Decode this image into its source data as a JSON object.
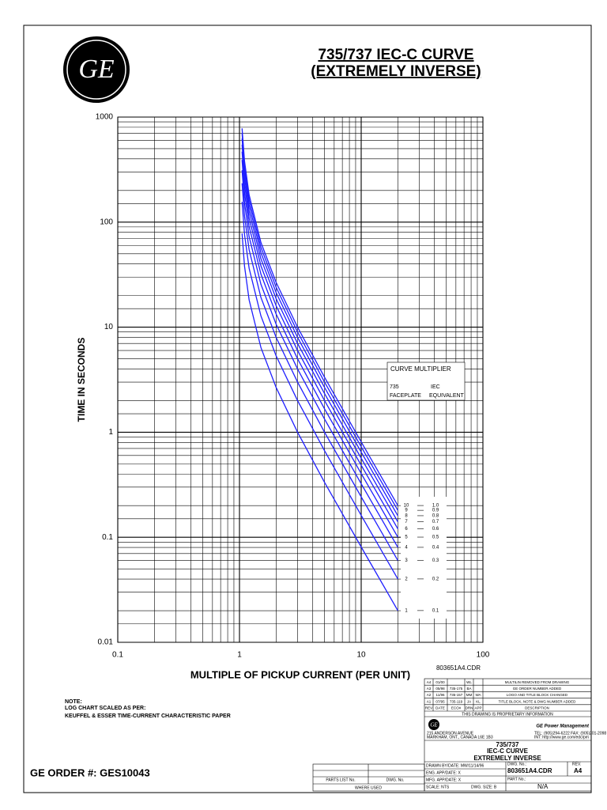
{
  "chart_data": {
    "type": "line",
    "title": "735/737 IEC-C CURVE",
    "subtitle": "(EXTREMELY INVERSE)",
    "x_label": "MULTIPLE OF PICKUP CURRENT (PER UNIT)",
    "y_label": "TIME IN SECONDS",
    "log_x": true,
    "log_y": true,
    "grid": true,
    "xlim": [
      0.1,
      100
    ],
    "ylim": [
      0.01,
      1000
    ],
    "xticks": [
      0.1,
      1,
      10,
      100
    ],
    "yticks": [
      0.01,
      0.1,
      1,
      10,
      100,
      1000
    ],
    "legend_title": "CURVE MULTIPLIER",
    "legend_col1": [
      "735",
      "FACEPLATE"
    ],
    "legend_col2": [
      "IEC",
      "EQUIVALENT"
    ],
    "x": [
      1.05,
      1.1,
      1.2,
      1.5,
      2,
      3,
      5,
      10,
      20
    ],
    "series": [
      {
        "name": "1",
        "iec": "0.1",
        "color": "#1f1fff",
        "values": [
          78.05,
          38.1,
          18.18,
          6.4,
          2.667,
          1,
          0.3333,
          0.0808,
          0.02005
        ]
      },
      {
        "name": "2",
        "iec": "0.2",
        "color": "#1f1fff",
        "values": [
          156.1,
          76.2,
          36.36,
          12.8,
          5.333,
          2,
          0.6667,
          0.1616,
          0.0401
        ]
      },
      {
        "name": "3",
        "iec": "0.3",
        "color": "#1f1fff",
        "values": [
          234.2,
          114.3,
          54.55,
          19.2,
          8,
          3,
          1,
          0.2424,
          0.06015
        ]
      },
      {
        "name": "4",
        "iec": "0.4",
        "color": "#1f1fff",
        "values": [
          312.2,
          152.4,
          72.73,
          25.6,
          10.67,
          4,
          1.333,
          0.3232,
          0.0802
        ]
      },
      {
        "name": "5",
        "iec": "0.5",
        "color": "#1f1fff",
        "values": [
          390.3,
          190.5,
          90.91,
          32,
          13.33,
          5,
          1.667,
          0.404,
          0.1003
        ]
      },
      {
        "name": "6",
        "iec": "0.6",
        "color": "#1f1fff",
        "values": [
          468.3,
          228.6,
          109.1,
          38.4,
          16,
          6,
          2,
          0.4848,
          0.1203
        ]
      },
      {
        "name": "7",
        "iec": "0.7",
        "color": "#1f1fff",
        "values": [
          546.4,
          266.7,
          127.3,
          44.8,
          18.67,
          7,
          2.333,
          0.5657,
          0.1404
        ]
      },
      {
        "name": "8",
        "iec": "0.8",
        "color": "#1f1fff",
        "values": [
          624.4,
          304.8,
          145.5,
          51.2,
          21.33,
          8,
          2.667,
          0.6465,
          0.1604
        ]
      },
      {
        "name": "9",
        "iec": "0.9",
        "color": "#1f1fff",
        "values": [
          702.5,
          342.9,
          163.6,
          57.6,
          24,
          9,
          3,
          0.7273,
          0.1805
        ]
      },
      {
        "name": "10",
        "iec": "1.0",
        "color": "#1f1fff",
        "values": [
          780.5,
          381,
          181.8,
          64,
          26.67,
          10,
          3.333,
          0.808,
          0.2005
        ]
      }
    ]
  },
  "logo": "GE",
  "file_name": "803651A4.CDR",
  "note": [
    "NOTE:",
    "LOG CHART SCALED AS PER:",
    "KEUFFEL & ESSER TIME-CURRENT CHARACTERISTIC PAPER"
  ],
  "order": "GE ORDER #: GES10043",
  "title_block": {
    "revisions": [
      [
        "A4",
        "01/00",
        null,
        "WL",
        null,
        "MULTILIN REMOVED FROM DRAWING"
      ],
      [
        "A3",
        "05/98",
        "735-175",
        "BA",
        null,
        "GE ORDER NUMBER ADDED"
      ],
      [
        "A2",
        "11/96",
        "735-157",
        "MM",
        "WA",
        "LOGO AND TITLE BLOCK CHANGED"
      ],
      [
        "A1",
        "07/95",
        "735-119",
        "JA",
        "KL",
        "TITLE BLOCK, NOTE & DWG NUMBER ADDED"
      ]
    ],
    "rev_header": [
      "REV",
      "DATE",
      "ECO#",
      "DRN",
      "APP",
      "DESCRIPTION"
    ],
    "proprietary": "THIS DRAWING IS PROPRIETARY INFORMATION",
    "company": "GE Power Management",
    "address": [
      "215 ANDERSON AVENUE",
      "MARKHAM, ONT., CANADA  L6E 1B3"
    ],
    "contact": [
      "TEL: (905)294-6222  FAX: (905)201-2098",
      "INT: http://www.ge.com/edc/pm"
    ],
    "title": [
      "735/737",
      "IEC-C CURVE",
      "EXTREMELY INVERSE"
    ],
    "drawn_by": "DRAWN BY/DATE:  MW/11/14/96",
    "dwg_no_label": "DWG. No.:",
    "dwg_no": "803651A4.CDR",
    "rev_label": "REV.",
    "rev": "A4",
    "eng_app": "ENG. APP/DATE:  X",
    "mfg_app": "MFG. APP/DATE:  X",
    "part_no_label": "PART No.:",
    "part_no": "N/A",
    "scale": "SCALE:  NTS",
    "dwg_size": "DWG. SIZE:  B",
    "parts_list": "PARTS LIST No.",
    "dwg_no_col": "DWG. No.",
    "where_used": "WHERE USED"
  }
}
